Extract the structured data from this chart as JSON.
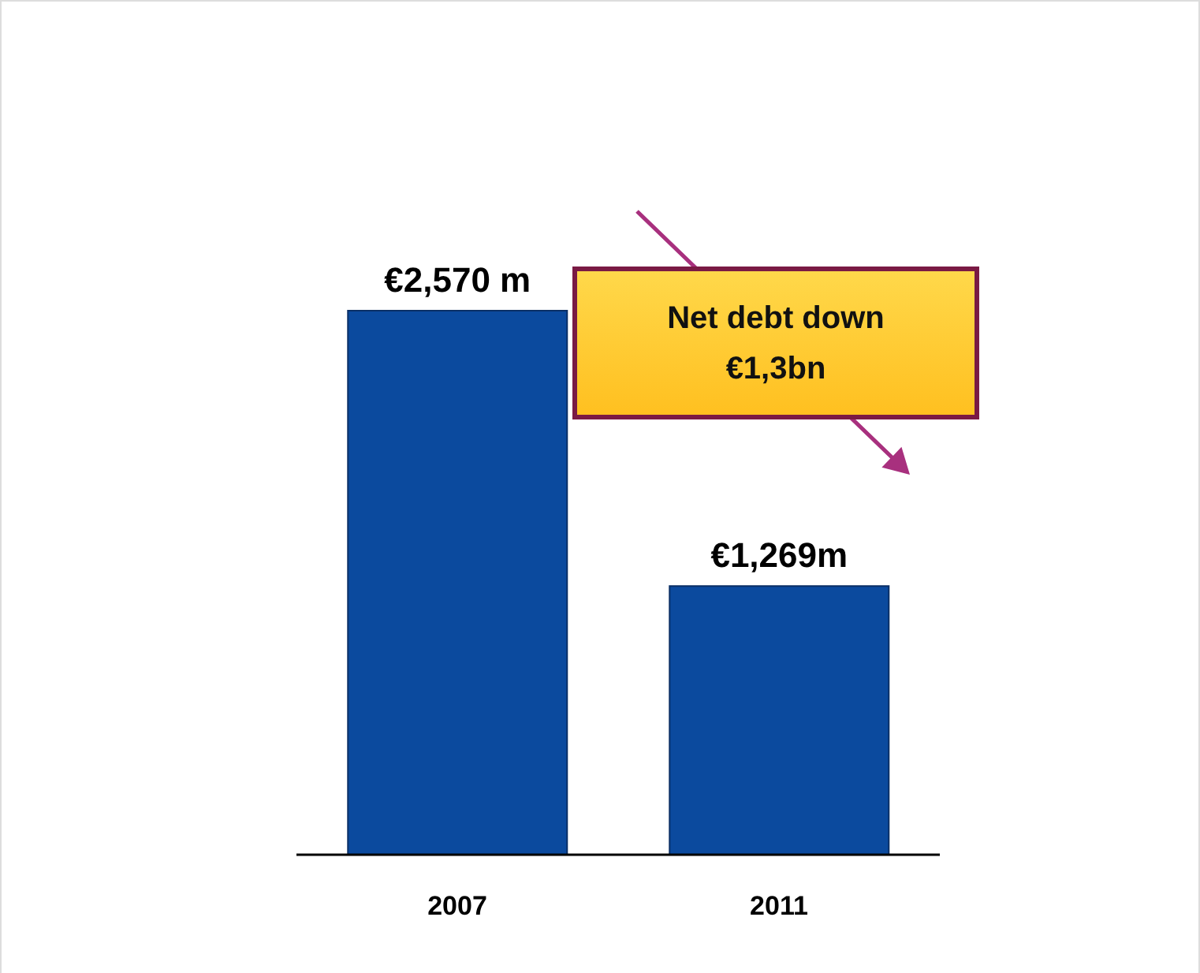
{
  "chart_data": {
    "type": "bar",
    "categories": [
      "2007",
      "2011"
    ],
    "values": [
      2570,
      1269
    ],
    "value_labels": [
      "€2,570 m",
      "€1,269m"
    ],
    "color": "#0b4a9e",
    "annotations": [
      "Net debt down\n€1,3bn"
    ],
    "grid": false,
    "legend": false
  }
}
